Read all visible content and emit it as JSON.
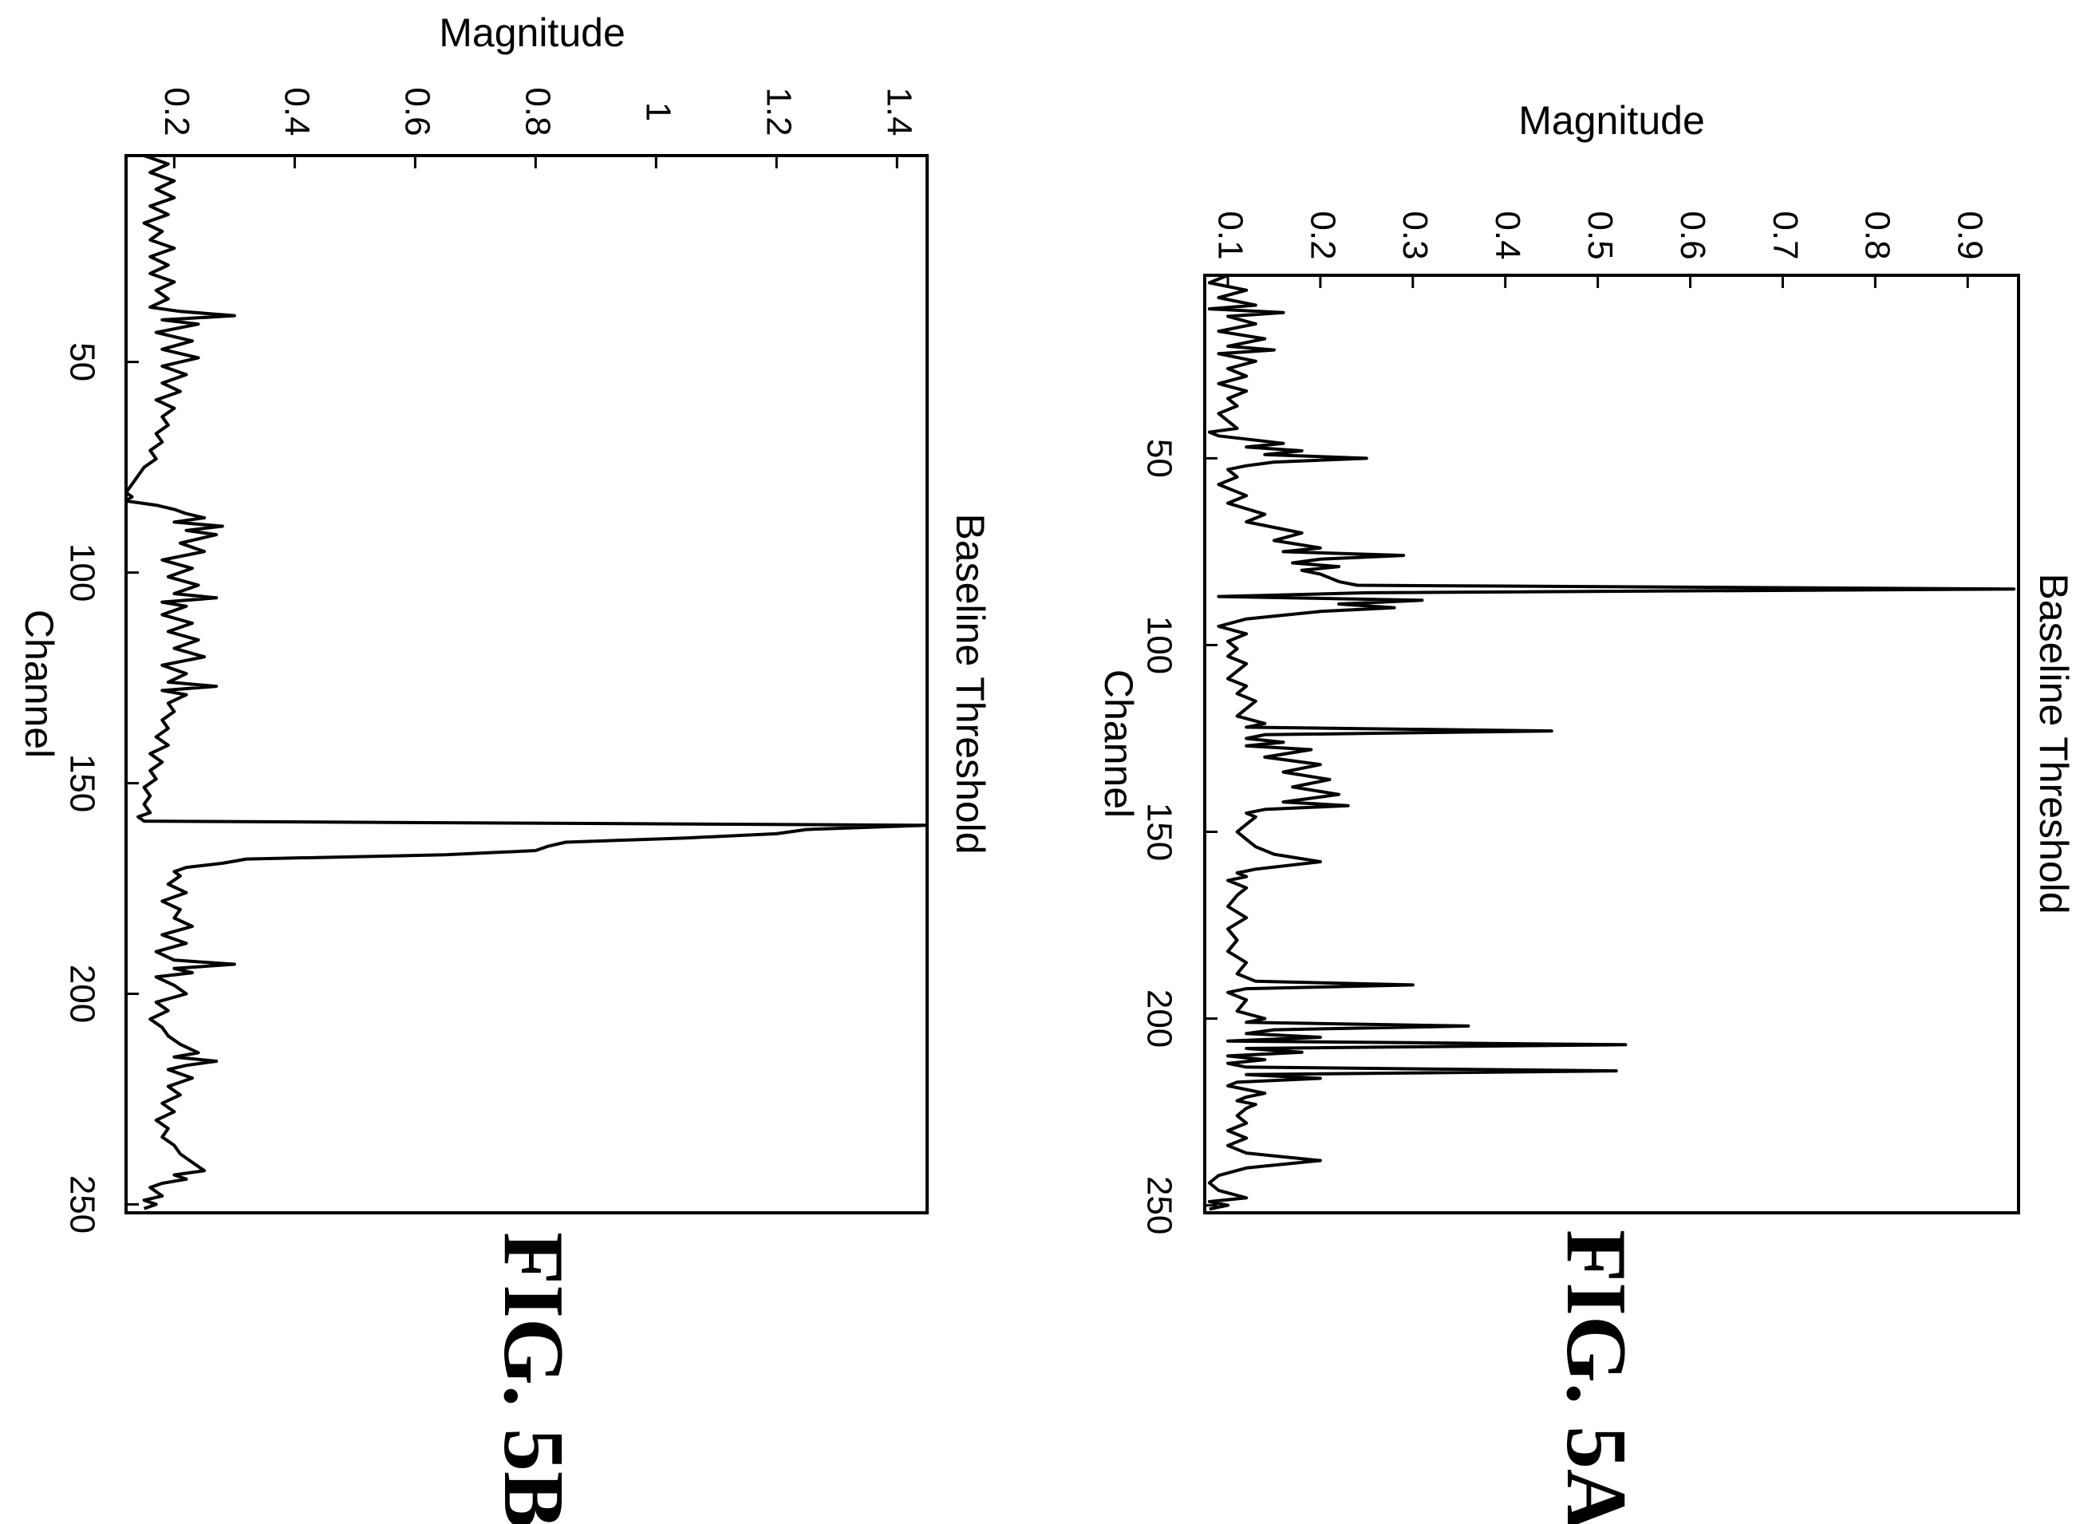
{
  "chart_data": [
    {
      "id": "fig-5a",
      "type": "line",
      "caption": "FIG. 5A",
      "xlabel": "Channel",
      "ylabel": "Magnitude",
      "series_label": "Baseline Threshold",
      "xlim": [
        1,
        252
      ],
      "ylim": [
        0.075,
        0.955
      ],
      "x_ticks": [
        50,
        100,
        150,
        200,
        250
      ],
      "y_ticks": [
        0.1,
        0.2,
        0.3,
        0.4,
        0.5,
        0.6,
        0.7,
        0.8,
        0.9
      ],
      "y_tick_labels": [
        "0.1",
        "0.2",
        "0.3",
        "0.4",
        "0.5",
        "0.6",
        "0.7",
        "0.8",
        "0.9"
      ],
      "series": [
        {
          "x": [
            1,
            3,
            5,
            7,
            9,
            10,
            11,
            12,
            14,
            16,
            18,
            20,
            21,
            22,
            24,
            26,
            28,
            30,
            32,
            34,
            36,
            38,
            40,
            42,
            43,
            44,
            46,
            47,
            48,
            49,
            50,
            51,
            52,
            53,
            55,
            57,
            60,
            62,
            65,
            67,
            70,
            72,
            74,
            75,
            76,
            77,
            78,
            79,
            80,
            81,
            82,
            83,
            84,
            85,
            86,
            87,
            88,
            89,
            90,
            91,
            92,
            93,
            95,
            97,
            99,
            101,
            103,
            105,
            107,
            109,
            111,
            113,
            115,
            117,
            119,
            121,
            122,
            123,
            124,
            125,
            126,
            127,
            128,
            130,
            132,
            134,
            136,
            138,
            140,
            142,
            143,
            144,
            145,
            146,
            148,
            150,
            152,
            154,
            156,
            158,
            160,
            161,
            162,
            163,
            165,
            167,
            170,
            173,
            176,
            179,
            182,
            185,
            188,
            190,
            191,
            192,
            193,
            195,
            198,
            200,
            201,
            202,
            203,
            204,
            205,
            206,
            207,
            208,
            209,
            210,
            211,
            212,
            213,
            214,
            215,
            216,
            217,
            218,
            219,
            220,
            221,
            222,
            223,
            224,
            226,
            228,
            230,
            232,
            234,
            236,
            238,
            240,
            242,
            244,
            246,
            248,
            249,
            250,
            251
          ],
          "y": [
            0.1,
            0.08,
            0.12,
            0.09,
            0.13,
            0.08,
            0.16,
            0.1,
            0.13,
            0.09,
            0.14,
            0.1,
            0.15,
            0.09,
            0.13,
            0.1,
            0.12,
            0.09,
            0.12,
            0.1,
            0.11,
            0.09,
            0.1,
            0.11,
            0.08,
            0.09,
            0.16,
            0.12,
            0.18,
            0.14,
            0.25,
            0.15,
            0.12,
            0.1,
            0.11,
            0.09,
            0.12,
            0.1,
            0.14,
            0.12,
            0.18,
            0.15,
            0.2,
            0.16,
            0.29,
            0.2,
            0.17,
            0.22,
            0.18,
            0.2,
            0.21,
            0.22,
            0.24,
            0.95,
            0.25,
            0.09,
            0.31,
            0.22,
            0.28,
            0.2,
            0.16,
            0.12,
            0.09,
            0.12,
            0.1,
            0.11,
            0.1,
            0.12,
            0.11,
            0.1,
            0.12,
            0.11,
            0.13,
            0.12,
            0.11,
            0.14,
            0.12,
            0.45,
            0.14,
            0.12,
            0.16,
            0.12,
            0.19,
            0.14,
            0.2,
            0.16,
            0.21,
            0.17,
            0.22,
            0.16,
            0.23,
            0.14,
            0.12,
            0.13,
            0.12,
            0.11,
            0.12,
            0.13,
            0.15,
            0.2,
            0.13,
            0.11,
            0.12,
            0.1,
            0.12,
            0.11,
            0.1,
            0.12,
            0.1,
            0.11,
            0.1,
            0.12,
            0.11,
            0.13,
            0.3,
            0.12,
            0.1,
            0.12,
            0.11,
            0.14,
            0.12,
            0.36,
            0.15,
            0.12,
            0.2,
            0.1,
            0.53,
            0.12,
            0.18,
            0.1,
            0.14,
            0.1,
            0.12,
            0.52,
            0.12,
            0.2,
            0.11,
            0.1,
            0.12,
            0.14,
            0.12,
            0.11,
            0.13,
            0.12,
            0.11,
            0.12,
            0.1,
            0.12,
            0.1,
            0.12,
            0.2,
            0.12,
            0.09,
            0.08,
            0.09,
            0.12,
            0.08,
            0.1,
            0.08
          ]
        }
      ]
    },
    {
      "id": "fig-5b",
      "type": "line",
      "caption": "FIG. 5B",
      "xlabel": "Channel",
      "ylabel": "Magnitude",
      "series_label": "Baseline Threshold",
      "xlim": [
        1,
        252
      ],
      "ylim": [
        0.12,
        1.45
      ],
      "x_ticks": [
        50,
        100,
        150,
        200,
        250
      ],
      "y_ticks": [
        0.2,
        0.4,
        0.6,
        0.8,
        1.0,
        1.2,
        1.4
      ],
      "y_tick_labels": [
        "0.2",
        "0.4",
        "0.6",
        "0.8",
        "1",
        "1.2",
        "1.4"
      ],
      "series": [
        {
          "x": [
            1,
            3,
            5,
            7,
            9,
            11,
            13,
            15,
            17,
            19,
            21,
            23,
            25,
            27,
            29,
            31,
            33,
            35,
            37,
            38,
            39,
            40,
            41,
            43,
            45,
            47,
            49,
            51,
            53,
            55,
            57,
            59,
            61,
            63,
            65,
            67,
            69,
            71,
            73,
            75,
            77,
            79,
            81,
            82,
            83,
            84,
            85,
            86,
            87,
            88,
            89,
            90,
            91,
            93,
            95,
            97,
            99,
            101,
            103,
            105,
            106,
            107,
            108,
            110,
            112,
            114,
            116,
            118,
            120,
            122,
            124,
            126,
            127,
            128,
            129,
            131,
            133,
            135,
            137,
            139,
            141,
            143,
            145,
            147,
            149,
            151,
            153,
            155,
            157,
            158,
            159,
            160,
            161,
            162,
            163,
            164,
            165,
            166,
            167,
            168,
            169,
            170,
            171,
            172,
            174,
            176,
            178,
            180,
            182,
            184,
            186,
            188,
            190,
            192,
            193,
            194,
            195,
            196,
            198,
            200,
            202,
            204,
            206,
            208,
            210,
            212,
            214,
            215,
            216,
            217,
            218,
            220,
            222,
            224,
            226,
            228,
            230,
            232,
            234,
            236,
            238,
            240,
            242,
            243,
            244,
            245,
            246,
            248,
            249,
            250,
            251
          ],
          "y": [
            0.15,
            0.19,
            0.16,
            0.2,
            0.17,
            0.2,
            0.16,
            0.19,
            0.15,
            0.18,
            0.16,
            0.2,
            0.16,
            0.19,
            0.16,
            0.2,
            0.17,
            0.19,
            0.16,
            0.21,
            0.3,
            0.18,
            0.24,
            0.17,
            0.23,
            0.18,
            0.24,
            0.18,
            0.22,
            0.18,
            0.21,
            0.17,
            0.2,
            0.18,
            0.19,
            0.17,
            0.18,
            0.16,
            0.17,
            0.15,
            0.14,
            0.13,
            0.12,
            0.13,
            0.12,
            0.17,
            0.2,
            0.22,
            0.25,
            0.2,
            0.28,
            0.22,
            0.27,
            0.21,
            0.25,
            0.18,
            0.23,
            0.19,
            0.24,
            0.2,
            0.27,
            0.18,
            0.22,
            0.18,
            0.23,
            0.19,
            0.24,
            0.2,
            0.25,
            0.18,
            0.22,
            0.19,
            0.27,
            0.18,
            0.22,
            0.19,
            0.2,
            0.18,
            0.19,
            0.17,
            0.19,
            0.16,
            0.18,
            0.16,
            0.17,
            0.15,
            0.16,
            0.15,
            0.16,
            0.14,
            0.15,
            1.45,
            1.25,
            1.2,
            1.05,
            0.85,
            0.82,
            0.8,
            0.65,
            0.32,
            0.28,
            0.22,
            0.2,
            0.21,
            0.19,
            0.22,
            0.18,
            0.21,
            0.2,
            0.23,
            0.18,
            0.22,
            0.17,
            0.2,
            0.3,
            0.2,
            0.23,
            0.17,
            0.2,
            0.22,
            0.17,
            0.19,
            0.16,
            0.18,
            0.19,
            0.21,
            0.24,
            0.2,
            0.27,
            0.22,
            0.19,
            0.23,
            0.19,
            0.21,
            0.18,
            0.2,
            0.17,
            0.19,
            0.18,
            0.2,
            0.21,
            0.23,
            0.25,
            0.2,
            0.22,
            0.18,
            0.16,
            0.18,
            0.15,
            0.17,
            0.15
          ]
        }
      ]
    }
  ]
}
